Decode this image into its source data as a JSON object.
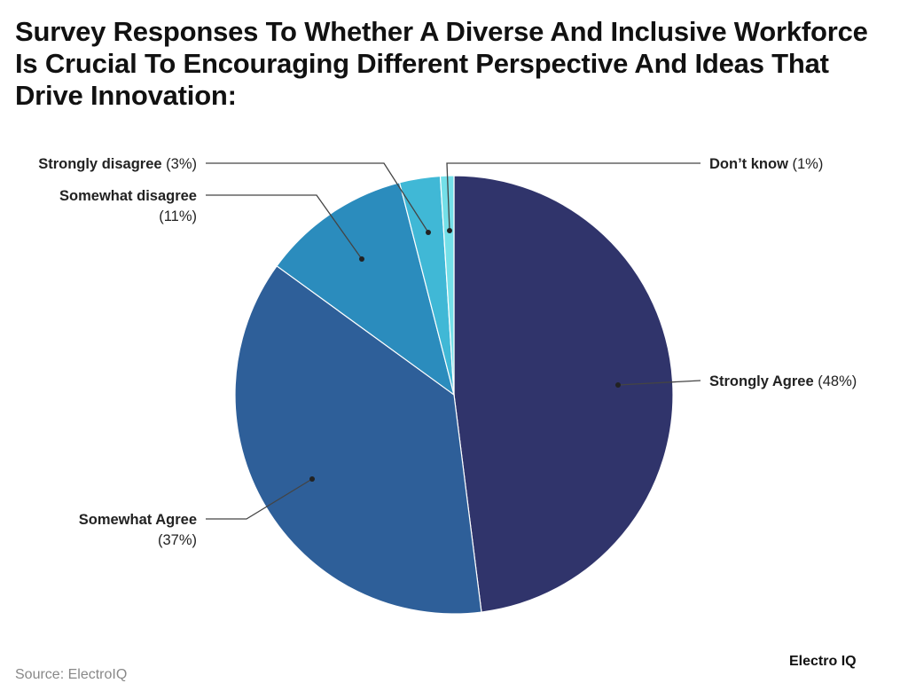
{
  "chart_data": {
    "type": "pie",
    "title": "Survey Responses To Whether A Diverse And Inclusive Workforce Is Crucial To Encouraging Different Perspective And Ideas That Drive Innovation:",
    "slices": [
      {
        "label": "Strongly Agree",
        "value": 48,
        "pct_text": "(48%)",
        "color": "#30346b"
      },
      {
        "label": "Somewhat Agree",
        "value": 37,
        "pct_text": "(37%)",
        "color": "#2e5f99"
      },
      {
        "label": "Somewhat disagree",
        "value": 11,
        "pct_text": "(11%)",
        "color": "#2b8cbd"
      },
      {
        "label": "Strongly disagree",
        "value": 3,
        "pct_text": "(3%)",
        "color": "#40b8d6"
      },
      {
        "label": "Don’t know",
        "value": 1,
        "pct_text": "(1%)",
        "color": "#74dfe8"
      }
    ],
    "start": "top",
    "direction": "clockwise",
    "legend": "none"
  },
  "footer": {
    "source": "Source: ElectroIQ",
    "logo": "Electro IQ"
  }
}
